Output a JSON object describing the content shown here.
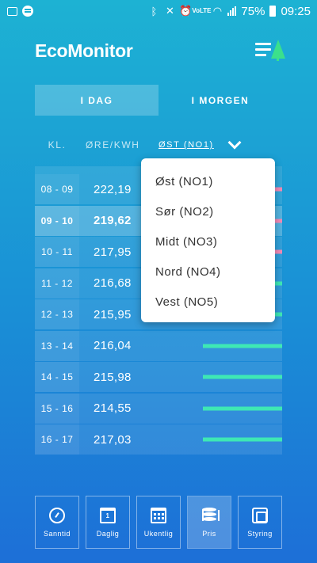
{
  "status_bar": {
    "battery": "75%",
    "time": "09:25",
    "network_label": "VoLTE",
    "icons_left": [
      "gallery-icon",
      "spotify-icon"
    ],
    "icons_right": [
      "bluetooth-icon",
      "mute-icon",
      "alarm-icon",
      "volte-icon",
      "wifi-icon",
      "signal-icon",
      "battery-icon"
    ]
  },
  "header": {
    "title": "EcoMonitor",
    "menu_icon": "menu-tree-logo-icon",
    "logo_color": "#3be08c"
  },
  "tabs": [
    {
      "label": "I DAG",
      "active": true
    },
    {
      "label": "I MORGEN",
      "active": false
    }
  ],
  "columns": {
    "time": "KL.",
    "unit": "ØRE/KWH",
    "region": "ØST (NO1)"
  },
  "rows": [
    {
      "time": "08 - 09",
      "price": "222,19",
      "bar_color": "#f28ab5",
      "bar_level": 0.03,
      "current": false
    },
    {
      "time": "09 - 10",
      "price": "219,62",
      "bar_color": "#f28ab5",
      "bar_level": 0.03,
      "current": true
    },
    {
      "time": "10 - 11",
      "price": "217,95",
      "bar_color": "#f28ab5",
      "bar_level": 0.03,
      "current": false
    },
    {
      "time": "11 - 12",
      "price": "216,68",
      "bar_color": "#3ee8b4",
      "bar_level": 0.03,
      "current": false
    },
    {
      "time": "12 - 13",
      "price": "215,95",
      "bar_color": "#3ee8b4",
      "bar_level": 0.03,
      "current": false
    },
    {
      "time": "13 - 14",
      "price": "216,04",
      "bar_color": "#3ee8b4",
      "bar_level": 0.32,
      "current": false
    },
    {
      "time": "14 - 15",
      "price": "215,98",
      "bar_color": "#3ee8b4",
      "bar_level": 0.32,
      "current": false
    },
    {
      "time": "15 - 16",
      "price": "214,55",
      "bar_color": "#3ee8b4",
      "bar_level": 0.32,
      "current": false
    },
    {
      "time": "16 - 17",
      "price": "217,03",
      "bar_color": "#3ee8b4",
      "bar_level": 0.32,
      "current": false
    }
  ],
  "dropdown": {
    "options": [
      "Øst (NO1)",
      "Sør (NO2)",
      "Midt (NO3)",
      "Nord (NO4)",
      "Vest (NO5)"
    ]
  },
  "bottom_nav": [
    {
      "label": "Sanntid",
      "icon": "gauge-icon",
      "active": false
    },
    {
      "label": "Daglig",
      "icon": "calendar-day-icon",
      "icon_text": "1",
      "active": false
    },
    {
      "label": "Ukentlig",
      "icon": "calendar-week-icon",
      "active": false
    },
    {
      "label": "Pris",
      "icon": "database-icon",
      "active": true
    },
    {
      "label": "Styring",
      "icon": "chip-icon",
      "active": false
    }
  ]
}
